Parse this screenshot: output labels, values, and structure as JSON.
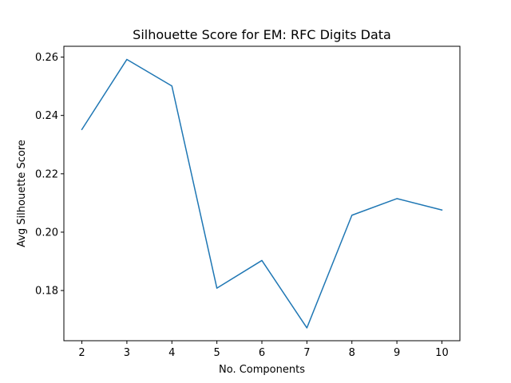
{
  "chart_data": {
    "type": "line",
    "title": "Silhouette Score for EM: RFC Digits Data",
    "xlabel": "No. Components",
    "ylabel": "Avg Silhouette Score",
    "x": [
      2,
      3,
      4,
      5,
      6,
      7,
      8,
      9,
      10
    ],
    "xticks": [
      "2",
      "3",
      "4",
      "5",
      "6",
      "7",
      "8",
      "9",
      "10"
    ],
    "yticks": [
      "0.18",
      "0.20",
      "0.22",
      "0.24",
      "0.26"
    ],
    "ytick_values": [
      0.18,
      0.2,
      0.22,
      0.24,
      0.26
    ],
    "series": [
      {
        "values": [
          0.2352,
          0.2592,
          0.2501,
          0.1808,
          0.1903,
          0.1672,
          0.2058,
          0.2115,
          0.2076
        ],
        "color": "#1f77b4"
      }
    ],
    "xlim": [
      1.6,
      10.4
    ],
    "ylim": [
      0.1628,
      0.2637
    ],
    "grid": false,
    "legend": "none"
  }
}
